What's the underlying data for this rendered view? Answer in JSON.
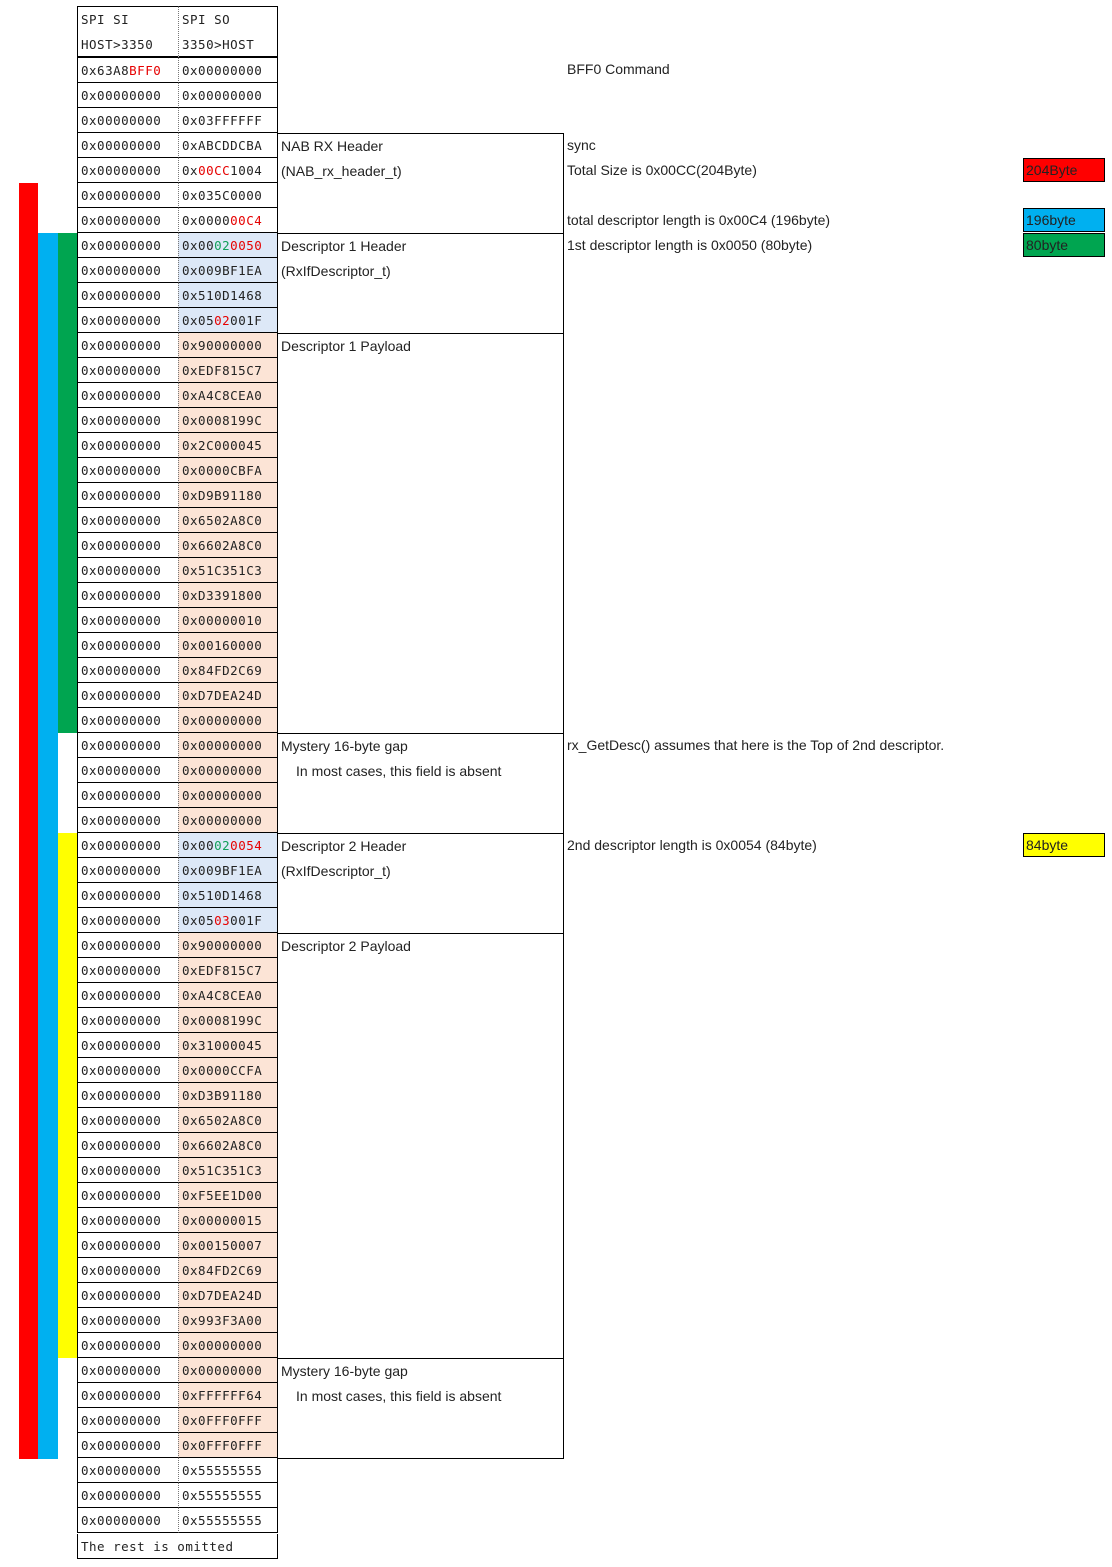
{
  "header": {
    "si": [
      "SPI SI",
      "HOST>3350"
    ],
    "so": [
      "SPI SO",
      "3350>HOST"
    ]
  },
  "rows": [
    {
      "si": "0x63A8",
      "si_r": "BFF0",
      "so": "0x00000000"
    },
    {
      "si": "0x00000000",
      "so": "0x00000000"
    },
    {
      "si": "0x00000000",
      "so": "0x03FFFFFF"
    },
    {
      "si": "0x00000000",
      "so": "0xABCDDCBA"
    },
    {
      "si": "0x00000000",
      "so_parts": [
        [
          "0x",
          ""
        ],
        [
          "00CC",
          "r"
        ],
        [
          "1004",
          ""
        ]
      ]
    },
    {
      "si": "0x00000000",
      "so": "0x035C0000"
    },
    {
      "si": "0x00000000",
      "so_parts": [
        [
          "0x0000",
          ""
        ],
        [
          "00C4",
          "r"
        ]
      ]
    },
    {
      "si": "0x00000000",
      "so_parts": [
        [
          "0x00",
          ""
        ],
        [
          "02",
          "g"
        ],
        [
          "0050",
          "r"
        ]
      ],
      "bg": "blue"
    },
    {
      "si": "0x00000000",
      "so": "0x009BF1EA",
      "bg": "blue"
    },
    {
      "si": "0x00000000",
      "so": "0x510D1468",
      "bg": "blue"
    },
    {
      "si": "0x00000000",
      "so_parts": [
        [
          "0x05",
          ""
        ],
        [
          "02",
          "r"
        ],
        [
          "001F",
          ""
        ]
      ],
      "bg": "blue"
    },
    {
      "si": "0x00000000",
      "so": "0x90000000",
      "bg": "peach"
    },
    {
      "si": "0x00000000",
      "so": "0xEDF815C7",
      "bg": "peach"
    },
    {
      "si": "0x00000000",
      "so": "0xA4C8CEA0",
      "bg": "peach"
    },
    {
      "si": "0x00000000",
      "so": "0x0008199C",
      "bg": "peach"
    },
    {
      "si": "0x00000000",
      "so": "0x2C000045",
      "bg": "peach"
    },
    {
      "si": "0x00000000",
      "so": "0x0000CBFA",
      "bg": "peach"
    },
    {
      "si": "0x00000000",
      "so": "0xD9B91180",
      "bg": "peach"
    },
    {
      "si": "0x00000000",
      "so": "0x6502A8C0",
      "bg": "peach"
    },
    {
      "si": "0x00000000",
      "so": "0x6602A8C0",
      "bg": "peach"
    },
    {
      "si": "0x00000000",
      "so": "0x51C351C3",
      "bg": "peach"
    },
    {
      "si": "0x00000000",
      "so": "0xD3391800",
      "bg": "peach"
    },
    {
      "si": "0x00000000",
      "so": "0x00000010",
      "bg": "peach"
    },
    {
      "si": "0x00000000",
      "so": "0x00160000",
      "bg": "peach"
    },
    {
      "si": "0x00000000",
      "so": "0x84FD2C69",
      "bg": "peach"
    },
    {
      "si": "0x00000000",
      "so": "0xD7DEA24D",
      "bg": "peach"
    },
    {
      "si": "0x00000000",
      "so": "0x00000000",
      "bg": "peach"
    },
    {
      "si": "0x00000000",
      "so": "0x00000000",
      "bg": "peach"
    },
    {
      "si": "0x00000000",
      "so": "0x00000000",
      "bg": "peach"
    },
    {
      "si": "0x00000000",
      "so": "0x00000000",
      "bg": "peach"
    },
    {
      "si": "0x00000000",
      "so": "0x00000000",
      "bg": "peach"
    },
    {
      "si": "0x00000000",
      "so_parts": [
        [
          "0x00",
          ""
        ],
        [
          "02",
          "g"
        ],
        [
          "0054",
          "r"
        ]
      ],
      "bg": "blue"
    },
    {
      "si": "0x00000000",
      "so": "0x009BF1EA",
      "bg": "blue"
    },
    {
      "si": "0x00000000",
      "so": "0x510D1468",
      "bg": "blue"
    },
    {
      "si": "0x00000000",
      "so_parts": [
        [
          "0x05",
          ""
        ],
        [
          "03",
          "r"
        ],
        [
          "001F",
          ""
        ]
      ],
      "bg": "blue"
    },
    {
      "si": "0x00000000",
      "so": "0x90000000",
      "bg": "peach"
    },
    {
      "si": "0x00000000",
      "so": "0xEDF815C7",
      "bg": "peach"
    },
    {
      "si": "0x00000000",
      "so": "0xA4C8CEA0",
      "bg": "peach"
    },
    {
      "si": "0x00000000",
      "so": "0x0008199C",
      "bg": "peach"
    },
    {
      "si": "0x00000000",
      "so": "0x31000045",
      "bg": "peach"
    },
    {
      "si": "0x00000000",
      "so": "0x0000CCFA",
      "bg": "peach"
    },
    {
      "si": "0x00000000",
      "so": "0xD3B91180",
      "bg": "peach"
    },
    {
      "si": "0x00000000",
      "so": "0x6502A8C0",
      "bg": "peach"
    },
    {
      "si": "0x00000000",
      "so": "0x6602A8C0",
      "bg": "peach"
    },
    {
      "si": "0x00000000",
      "so": "0x51C351C3",
      "bg": "peach"
    },
    {
      "si": "0x00000000",
      "so": "0xF5EE1D00",
      "bg": "peach"
    },
    {
      "si": "0x00000000",
      "so": "0x00000015",
      "bg": "peach"
    },
    {
      "si": "0x00000000",
      "so": "0x00150007",
      "bg": "peach"
    },
    {
      "si": "0x00000000",
      "so": "0x84FD2C69",
      "bg": "peach"
    },
    {
      "si": "0x00000000",
      "so": "0xD7DEA24D",
      "bg": "peach"
    },
    {
      "si": "0x00000000",
      "so": "0x993F3A00",
      "bg": "peach"
    },
    {
      "si": "0x00000000",
      "so": "0x00000000",
      "bg": "peach"
    },
    {
      "si": "0x00000000",
      "so": "0x00000000",
      "bg": "peach"
    },
    {
      "si": "0x00000000",
      "so": "0xFFFFFF64",
      "bg": "peach"
    },
    {
      "si": "0x00000000",
      "so": "0x0FFF0FFF",
      "bg": "peach"
    },
    {
      "si": "0x00000000",
      "so": "0x0FFF0FFF",
      "bg": "peach"
    },
    {
      "si": "0x00000000",
      "so": "0x55555555"
    },
    {
      "si": "0x00000000",
      "so": "0x55555555"
    },
    {
      "si": "0x00000000",
      "so": "0x55555555"
    }
  ],
  "tail": "The rest is omitted",
  "sections": {
    "nab_title": "NAB RX Header",
    "nab_sub": "(NAB_rx_header_t)",
    "d1h_title": "Descriptor 1 Header",
    "d1h_sub": "(RxIfDescriptor_t)",
    "d1p_title": "Descriptor 1 Payload",
    "gap1_title": "Mystery 16-byte gap",
    "gap1_sub": "In most cases, this field is absent",
    "d2h_title": "Descriptor 2 Header",
    "d2h_sub": "(RxIfDescriptor_t)",
    "d2p_title": "Descriptor 2 Payload",
    "gap2_title": "Mystery 16-byte gap",
    "gap2_sub": "In most cases, this field is absent"
  },
  "notes": {
    "bff0": "BFF0 Command",
    "sync": "sync",
    "total": "Total Size is 0x00CC(204Byte)",
    "desc_total": "total descriptor length is 0x00C4 (196byte)",
    "d1len": "1st descriptor length is 0x0050 (80byte)",
    "getdesc": "rx_GetDesc() assumes that here is the Top of 2nd descriptor.",
    "d2len": "2nd descriptor length is 0x0054 (84byte)"
  },
  "badges": {
    "b204": "204Byte",
    "b196": "196byte",
    "b80": "80byte",
    "b84": "84byte"
  },
  "colors": {
    "red": "#ff0000",
    "blue": "#00b0f0",
    "green": "#00a550",
    "yellow": "#ffff00",
    "cell_blue": "#dde8f7",
    "cell_peach": "#fce4d6"
  }
}
